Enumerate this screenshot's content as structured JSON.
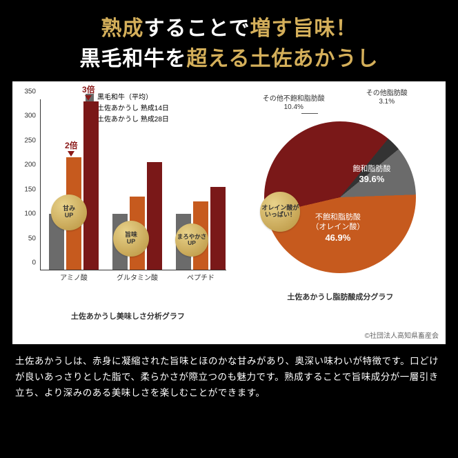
{
  "title": {
    "line1_parts": [
      {
        "text": "熟成",
        "cls": "gold"
      },
      {
        "text": "することで",
        "cls": "white"
      },
      {
        "text": "増す旨味！",
        "cls": "gold"
      }
    ],
    "line2_parts": [
      {
        "text": "黒毛和牛を",
        "cls": "white"
      },
      {
        "text": "超える土佐あかうし",
        "cls": "gold"
      }
    ]
  },
  "bar_chart": {
    "type": "bar",
    "legend": [
      {
        "label": "黒毛和牛（平均）",
        "color": "#6b6b6b"
      },
      {
        "label": "土佐あかうし 熟成14日",
        "color": "#c65a1e"
      },
      {
        "label": "土佐あかうし 熟成28日",
        "color": "#7a1818"
      }
    ],
    "ylim": [
      0,
      350
    ],
    "ytick_step": 50,
    "categories": [
      "アミノ酸",
      "グルタミン酸",
      "ペプチド"
    ],
    "series": [
      {
        "color": "#6b6b6b",
        "values": [
          115,
          115,
          115
        ]
      },
      {
        "color": "#c65a1e",
        "values": [
          230,
          150,
          140
        ]
      },
      {
        "color": "#7a1818",
        "values": [
          345,
          220,
          170
        ]
      }
    ],
    "callouts": [
      {
        "text": "2倍",
        "group": 0,
        "bar": 1
      },
      {
        "text": "3倍",
        "group": 0,
        "bar": 2
      }
    ],
    "badges": [
      {
        "text": "甘み\nUP",
        "group": 0
      },
      {
        "text": "旨味\nUP",
        "group": 1
      },
      {
        "text": "まろやかさ\nUP",
        "group": 2
      }
    ],
    "subtitle": "土佐あかうし美味しさ分析グラフ"
  },
  "pie_chart": {
    "type": "pie",
    "slices": [
      {
        "label": "不飽和脂肪酸\n（オレイン酸）",
        "value": 46.9,
        "color": "#c65a1e",
        "text_color": "#fff"
      },
      {
        "label": "飽和脂肪酸",
        "value": 39.6,
        "color": "#7a1818",
        "text_color": "#fff"
      },
      {
        "label": "その他脂肪酸",
        "value": 3.1,
        "color": "#333333",
        "text_color": "#333"
      },
      {
        "label": "その他不飽和脂肪酸",
        "value": 10.4,
        "color": "#6b6b6b",
        "text_color": "#333"
      }
    ],
    "badge": "オレイン酸が\nいっぱい！",
    "subtitle": "土佐あかうし脂肪酸成分グラフ"
  },
  "credit": "©社団法人高知県畜産会",
  "description": "土佐あかうしは、赤身に凝縮された旨味とほのかな甘みがあり、奥深い味わいが特徴です。口どけが良いあっさりとした脂で、柔らかさが際立つのも魅力です。熟成することで旨味成分が一層引き立ち、より深みのある美味しさを楽しむことができます。"
}
